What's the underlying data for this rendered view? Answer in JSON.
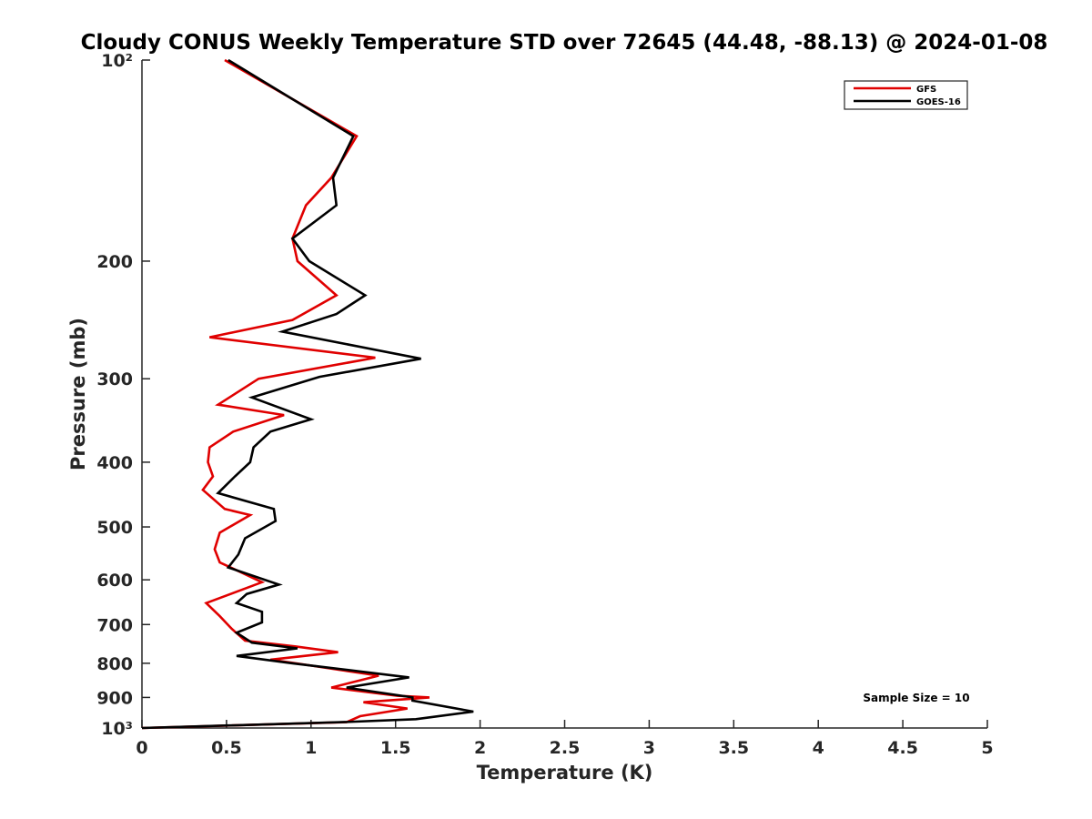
{
  "chart_data": {
    "type": "line",
    "title": "Cloudy CONUS Weekly Temperature STD over 72645 (44.48, -88.13) @ 2024-01-08",
    "xlabel": "Temperature (K)",
    "ylabel": "Pressure (mb)",
    "xlim": [
      0,
      5
    ],
    "ylim": [
      100,
      1000
    ],
    "yscale": "log",
    "y_reversed": true,
    "grid": false,
    "legend_position": "top-right",
    "x_ticks": [
      "0",
      "0.5",
      "1",
      "1.5",
      "2",
      "2.5",
      "3",
      "3.5",
      "4",
      "4.5",
      "5"
    ],
    "x_tick_values": [
      0,
      0.5,
      1,
      1.5,
      2,
      2.5,
      3,
      3.5,
      4,
      4.5,
      5
    ],
    "y_ticks": [
      "10²",
      "200",
      "300",
      "400",
      "500",
      "600",
      "700",
      "800",
      "900",
      "10³"
    ],
    "y_tick_values": [
      100,
      200,
      300,
      400,
      500,
      600,
      700,
      800,
      900,
      1000
    ],
    "annotation": "Sample Size = 10",
    "series": [
      {
        "name": "GFS",
        "color": "#e00000",
        "points": [
          [
            0.49,
            100
          ],
          [
            1.27,
            130
          ],
          [
            1.12,
            150
          ],
          [
            0.97,
            165
          ],
          [
            0.89,
            185
          ],
          [
            0.92,
            200
          ],
          [
            1.15,
            225
          ],
          [
            0.89,
            245
          ],
          [
            0.4,
            260
          ],
          [
            1.38,
            279
          ],
          [
            0.69,
            300
          ],
          [
            0.45,
            328
          ],
          [
            0.84,
            340
          ],
          [
            0.54,
            360
          ],
          [
            0.4,
            380
          ],
          [
            0.39,
            400
          ],
          [
            0.42,
            420
          ],
          [
            0.36,
            440
          ],
          [
            0.49,
            470
          ],
          [
            0.64,
            480
          ],
          [
            0.46,
            510
          ],
          [
            0.43,
            540
          ],
          [
            0.46,
            565
          ],
          [
            0.71,
            605
          ],
          [
            0.38,
            650
          ],
          [
            0.46,
            680
          ],
          [
            0.53,
            710
          ],
          [
            0.61,
            740
          ],
          [
            0.91,
            755
          ],
          [
            1.16,
            770
          ],
          [
            0.76,
            790
          ],
          [
            0.91,
            800
          ],
          [
            1.4,
            835
          ],
          [
            1.12,
            870
          ],
          [
            1.51,
            895
          ],
          [
            1.7,
            900
          ],
          [
            1.31,
            915
          ],
          [
            1.57,
            935
          ],
          [
            1.29,
            960
          ],
          [
            1.21,
            980
          ],
          [
            0.0,
            1000
          ]
        ]
      },
      {
        "name": "GOES-16",
        "color": "#000000",
        "points": [
          [
            0.51,
            100
          ],
          [
            1.25,
            130
          ],
          [
            1.13,
            150
          ],
          [
            1.15,
            165
          ],
          [
            0.89,
            185
          ],
          [
            0.99,
            200
          ],
          [
            1.32,
            225
          ],
          [
            1.15,
            240
          ],
          [
            0.83,
            255
          ],
          [
            1.65,
            280
          ],
          [
            1.05,
            298
          ],
          [
            0.65,
            320
          ],
          [
            1.0,
            345
          ],
          [
            0.76,
            360
          ],
          [
            0.66,
            380
          ],
          [
            0.64,
            400
          ],
          [
            0.55,
            420
          ],
          [
            0.45,
            445
          ],
          [
            0.78,
            470
          ],
          [
            0.79,
            490
          ],
          [
            0.61,
            520
          ],
          [
            0.57,
            550
          ],
          [
            0.51,
            575
          ],
          [
            0.81,
            610
          ],
          [
            0.62,
            630
          ],
          [
            0.56,
            650
          ],
          [
            0.71,
            670
          ],
          [
            0.71,
            695
          ],
          [
            0.56,
            720
          ],
          [
            0.65,
            745
          ],
          [
            0.92,
            760
          ],
          [
            0.56,
            780
          ],
          [
            0.89,
            800
          ],
          [
            1.58,
            840
          ],
          [
            1.21,
            870
          ],
          [
            1.6,
            900
          ],
          [
            1.6,
            910
          ],
          [
            1.96,
            945
          ],
          [
            1.62,
            970
          ],
          [
            1.18,
            980
          ],
          [
            0.0,
            1000
          ]
        ]
      }
    ]
  }
}
